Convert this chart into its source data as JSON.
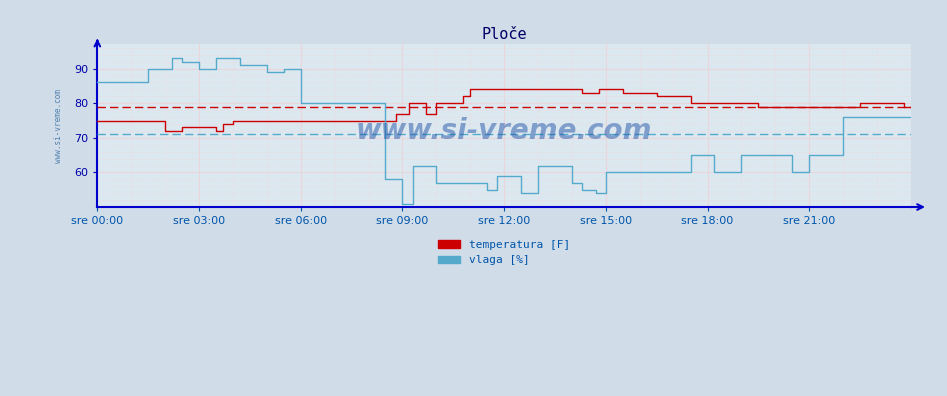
{
  "title": "Ploče",
  "bg_color": "#d0dce8",
  "plot_bg_color": "#dce8f0",
  "grid_color_red_major": "#f0a0a0",
  "grid_color_red_minor": "#f8d0d0",
  "grid_color_cyan_major": "#a0cce0",
  "grid_color_cyan_minor": "#c8e4f0",
  "ylim": [
    50,
    97
  ],
  "yticks": [
    60,
    70,
    80,
    90
  ],
  "ylabel_color": "#0000aa",
  "xlabel_color": "#0055aa",
  "axis_color": "#0000cc",
  "watermark": "www.si-vreme.com",
  "watermark_color": "#2255aa",
  "xlabel_labels": [
    "sre 00:00",
    "sre 03:00",
    "sre 06:00",
    "sre 09:00",
    "sre 12:00",
    "sre 15:00",
    "sre 18:00",
    "sre 21:00"
  ],
  "temp_avg": 79.0,
  "vlaga_avg": 71.0,
  "temp_color": "#cc0000",
  "vlaga_color": "#55aacc",
  "legend_temp": "temperatura [F]",
  "legend_vlaga": "vlaga [%]",
  "temp_data_x": [
    0,
    2.0,
    2.0,
    2.5,
    2.5,
    3.5,
    3.5,
    3.7,
    3.7,
    4.0,
    4.0,
    8.8,
    8.8,
    9.2,
    9.2,
    9.7,
    9.7,
    10.0,
    10.0,
    10.8,
    10.8,
    11.0,
    11.0,
    14.3,
    14.3,
    14.8,
    14.8,
    15.5,
    15.5,
    16.5,
    16.5,
    17.5,
    17.5,
    19.5,
    19.5,
    22.5,
    22.5,
    23.8,
    23.8,
    24
  ],
  "temp_data_y": [
    75,
    75,
    72,
    72,
    73,
    73,
    72,
    72,
    74,
    74,
    75,
    75,
    77,
    77,
    80,
    80,
    77,
    77,
    80,
    80,
    82,
    82,
    84,
    84,
    83,
    83,
    84,
    84,
    83,
    83,
    82,
    82,
    80,
    80,
    79,
    79,
    80,
    80,
    79,
    79
  ],
  "vlaga_data_x": [
    0,
    1.5,
    1.5,
    2.2,
    2.2,
    2.5,
    2.5,
    3.0,
    3.0,
    3.5,
    3.5,
    4.2,
    4.2,
    5.0,
    5.0,
    5.5,
    5.5,
    6.0,
    6.0,
    8.5,
    8.5,
    9.0,
    9.0,
    9.3,
    9.3,
    10.0,
    10.0,
    11.5,
    11.5,
    11.8,
    11.8,
    12.5,
    12.5,
    13.0,
    13.0,
    14.0,
    14.0,
    14.3,
    14.3,
    14.7,
    14.7,
    15.0,
    15.0,
    17.5,
    17.5,
    18.2,
    18.2,
    19.0,
    19.0,
    20.5,
    20.5,
    21.0,
    21.0,
    22.0,
    22.0,
    24
  ],
  "vlaga_data_y": [
    86,
    86,
    90,
    90,
    93,
    93,
    92,
    92,
    90,
    90,
    93,
    93,
    91,
    91,
    89,
    89,
    90,
    90,
    80,
    80,
    58,
    58,
    51,
    51,
    62,
    62,
    57,
    57,
    55,
    55,
    59,
    59,
    54,
    54,
    62,
    62,
    57,
    57,
    55,
    55,
    54,
    54,
    60,
    60,
    65,
    65,
    60,
    60,
    65,
    65,
    60,
    60,
    65,
    65,
    76,
    76
  ]
}
